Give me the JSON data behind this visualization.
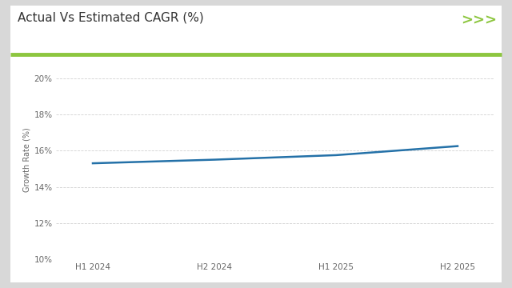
{
  "title": "Actual Vs Estimated CAGR (%)",
  "ylabel": "Growth Rate (%)",
  "x_labels": [
    "H1 2024",
    "H2 2024",
    "H1 2025",
    "H2 2025"
  ],
  "x_values": [
    0,
    1,
    2,
    3
  ],
  "y_values": [
    15.3,
    15.5,
    15.75,
    16.25
  ],
  "ylim": [
    10,
    21
  ],
  "yticks": [
    10,
    12,
    14,
    16,
    18,
    20
  ],
  "ytick_labels": [
    "10%",
    "12%",
    "14%",
    "16%",
    "18%",
    "20%"
  ],
  "line_color": "#2471a8",
  "line_width": 1.8,
  "outer_bg_color": "#d8d8d8",
  "card_bg_color": "#ffffff",
  "plot_bg_color": "#ffffff",
  "title_fontsize": 11,
  "axis_label_fontsize": 7,
  "tick_fontsize": 7.5,
  "green_bar_color": "#8dc63f",
  "title_color": "#333333",
  "grid_color": "#cccccc",
  "arrow_color": "#8dc63f",
  "arrow_text": ">>>"
}
